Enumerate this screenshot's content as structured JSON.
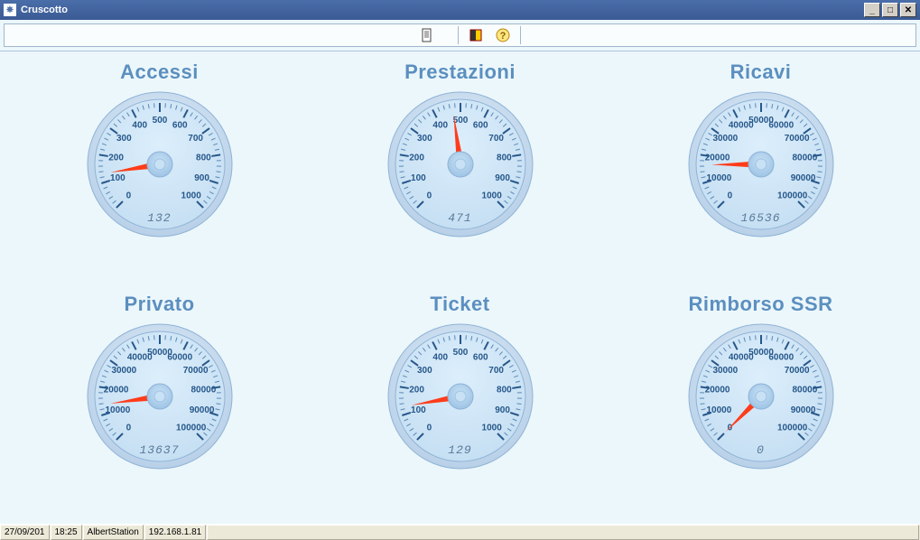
{
  "window": {
    "title": "Cruscotto"
  },
  "toolbar": {
    "icons": [
      "document-icon",
      "exit-icon",
      "help-icon"
    ]
  },
  "gauges": [
    {
      "title": "Accessi",
      "value": 132,
      "readout": "132",
      "max": 1000,
      "ticks": [
        0,
        100,
        200,
        300,
        400,
        500,
        600,
        700,
        800,
        900,
        1000
      ]
    },
    {
      "title": "Prestazioni",
      "value": 471,
      "readout": "471",
      "max": 1000,
      "ticks": [
        0,
        100,
        200,
        300,
        400,
        500,
        600,
        700,
        800,
        900,
        1000
      ]
    },
    {
      "title": "Ricavi",
      "value": 16536,
      "readout": "16536",
      "max": 100000,
      "ticks": [
        0,
        10000,
        20000,
        30000,
        40000,
        50000,
        60000,
        70000,
        80000,
        90000,
        100000
      ]
    },
    {
      "title": "Privato",
      "value": 13637,
      "readout": "13637",
      "max": 100000,
      "ticks": [
        0,
        10000,
        20000,
        30000,
        40000,
        50000,
        60000,
        70000,
        80000,
        90000,
        100000
      ]
    },
    {
      "title": "Ticket",
      "value": 129,
      "readout": "129",
      "max": 1000,
      "ticks": [
        0,
        100,
        200,
        300,
        400,
        500,
        600,
        700,
        800,
        900,
        1000
      ]
    },
    {
      "title": "Rimborso SSR",
      "value": 0,
      "readout": "0",
      "max": 100000,
      "ticks": [
        0,
        10000,
        20000,
        30000,
        40000,
        50000,
        60000,
        70000,
        80000,
        90000,
        100000
      ]
    }
  ],
  "gauge_style": {
    "start_angle": 225,
    "sweep": 270,
    "outer_radius": 80,
    "dial_radius": 72,
    "tick_outer": 68,
    "tick_inner_major": 58,
    "tick_inner_minor": 63,
    "label_radius": 49,
    "needle_length": 55,
    "colors": {
      "rim_outer": "#b8d0e8",
      "rim_inner": "#e8f2fa",
      "face_grad_top": "#dceefb",
      "face_grad_bot": "#c4def2",
      "face_border": "#8fb3d6",
      "tick": "#26578a",
      "tick_minor": "#5a88b6",
      "label": "#26578a",
      "needle": "#ff3c1a",
      "hub_outer": "#9ec4e6",
      "hub_inner": "#c9e1f4",
      "readout": "#5a7a9a"
    },
    "tick_label_fontsize": 10
  },
  "statusbar": {
    "date": "27/09/201",
    "time": "18:25",
    "host": "AlbertStation",
    "ip": "192.168.1.81"
  }
}
